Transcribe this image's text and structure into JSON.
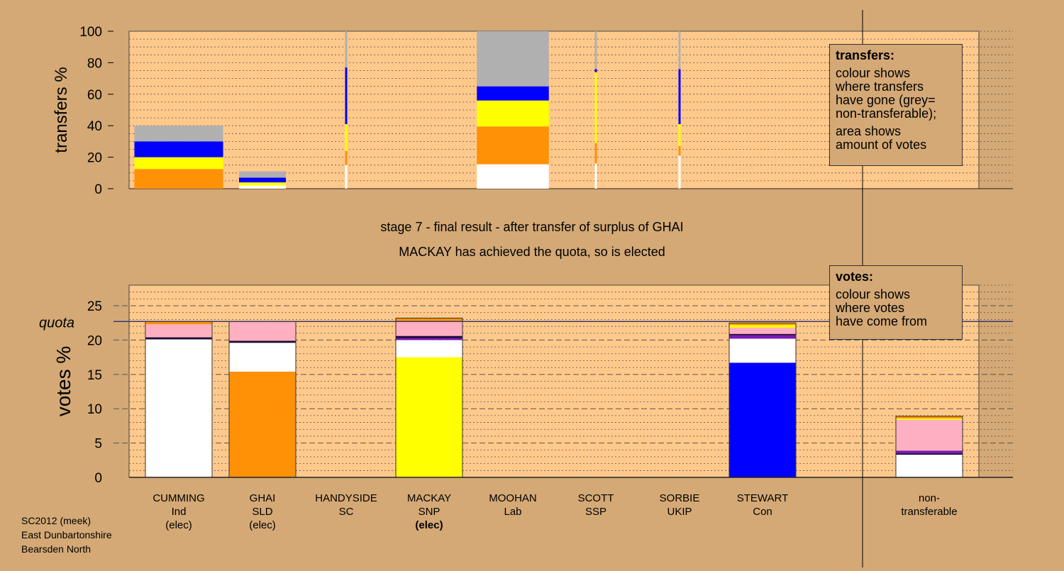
{
  "captions": {
    "stage": "stage 7 - final result - after transfer of surplus of GHAI",
    "status": "MACKAY has achieved the quota, so is elected"
  },
  "legend_transfers": {
    "title": "transfers:",
    "lines1": [
      "colour shows",
      "where transfers",
      "have gone (grey=",
      "non-transferable);"
    ],
    "lines2": [
      "area shows",
      "amount of votes"
    ]
  },
  "legend_votes": {
    "title": "votes:",
    "lines": [
      "colour shows",
      "where votes",
      "have come from"
    ]
  },
  "footer": {
    "lines": [
      "SC2012 (meek)",
      "East Dunbartonshire",
      "Bearsden North"
    ]
  },
  "colors": {
    "background": "#d4a976",
    "plot_background": "#ffc98c",
    "white": "#ffffff",
    "orange": "#ff9107",
    "yellow": "#ffff00",
    "blue": "#0000ff",
    "grey": "#b0b0b0",
    "purple": "#7a1ab5",
    "dark": "#1a0a3a",
    "pink": "#ffb0c0",
    "quota_line": "#3a3a6a"
  },
  "chart_data": [
    {
      "type": "bar",
      "name": "transfers",
      "ylabel": "transfers %",
      "ylim": [
        0,
        100
      ],
      "yticks": [
        0,
        20,
        40,
        60,
        80,
        100
      ],
      "grid": true,
      "note": "bar width proportional to the amount of votes transferred",
      "bars": [
        {
          "candidate": "CUMMING",
          "width_votes": 5.3,
          "segments": [
            {
              "color": "orange",
              "value": 12.5
            },
            {
              "color": "yellow",
              "value": 7.5
            },
            {
              "color": "blue",
              "value": 10
            },
            {
              "color": "grey",
              "value": 10
            }
          ]
        },
        {
          "candidate": "GHAI",
          "width_votes": 2.8,
          "segments": [
            {
              "color": "white",
              "value": 2
            },
            {
              "color": "yellow",
              "value": 2
            },
            {
              "color": "blue",
              "value": 3
            },
            {
              "color": "grey",
              "value": 4
            }
          ]
        },
        {
          "candidate": "HANDYSIDE",
          "width_votes": 0.1,
          "segments": [
            {
              "color": "white",
              "value": 15
            },
            {
              "color": "orange",
              "value": 9
            },
            {
              "color": "yellow",
              "value": 17
            },
            {
              "color": "blue",
              "value": 36
            },
            {
              "color": "grey",
              "value": 23
            }
          ]
        },
        {
          "candidate": "MOOHAN",
          "width_votes": 4.3,
          "segments": [
            {
              "color": "white",
              "value": 15.5
            },
            {
              "color": "orange",
              "value": 24
            },
            {
              "color": "yellow",
              "value": 16.5
            },
            {
              "color": "blue",
              "value": 9
            },
            {
              "color": "grey",
              "value": 35
            }
          ]
        },
        {
          "candidate": "SCOTT",
          "width_votes": 0.1,
          "segments": [
            {
              "color": "white",
              "value": 16
            },
            {
              "color": "orange",
              "value": 13
            },
            {
              "color": "yellow",
              "value": 45
            },
            {
              "color": "blue",
              "value": 2
            },
            {
              "color": "grey",
              "value": 24
            }
          ]
        },
        {
          "candidate": "SORBIE",
          "width_votes": 0.1,
          "segments": [
            {
              "color": "white",
              "value": 21
            },
            {
              "color": "orange",
              "value": 6
            },
            {
              "color": "yellow",
              "value": 14
            },
            {
              "color": "blue",
              "value": 35
            },
            {
              "color": "grey",
              "value": 24
            }
          ]
        }
      ]
    },
    {
      "type": "bar",
      "name": "votes",
      "ylabel": "votes %",
      "ylim": [
        0,
        28
      ],
      "yticks": [
        0,
        5,
        10,
        15,
        20,
        25
      ],
      "grid": true,
      "quota": 22.7,
      "quota_label": "quota",
      "bars": [
        {
          "candidate": "CUMMING",
          "party": "Ind",
          "status": "(elec)",
          "segments": [
            {
              "color": "white",
              "value": 20.1
            },
            {
              "color": "dark",
              "value": 0.3
            },
            {
              "color": "pink",
              "value": 1.9
            },
            {
              "color": "orange",
              "value": 0.4
            }
          ]
        },
        {
          "candidate": "GHAI",
          "party": "SLD",
          "status": "(elec)",
          "segments": [
            {
              "color": "orange",
              "value": 15.4
            },
            {
              "color": "white",
              "value": 4.2
            },
            {
              "color": "dark",
              "value": 0.3
            },
            {
              "color": "pink",
              "value": 2.8
            }
          ]
        },
        {
          "candidate": "HANDYSIDE",
          "party": "SC",
          "status": "",
          "segments": []
        },
        {
          "candidate": "MACKAY",
          "party": "SNP",
          "status": "(elec)",
          "segments": [
            {
              "color": "yellow",
              "value": 17.5
            },
            {
              "color": "white",
              "value": 2.5
            },
            {
              "color": "purple",
              "value": 0.3
            },
            {
              "color": "dark",
              "value": 0.3
            },
            {
              "color": "pink",
              "value": 2.1
            },
            {
              "color": "orange",
              "value": 0.5
            }
          ]
        },
        {
          "candidate": "MOOHAN",
          "party": "Lab",
          "status": "",
          "segments": []
        },
        {
          "candidate": "SCOTT",
          "party": "SSP",
          "status": "",
          "segments": []
        },
        {
          "candidate": "SORBIE",
          "party": "UKIP",
          "status": "",
          "segments": []
        },
        {
          "candidate": "STEWART",
          "party": "Con",
          "status": "",
          "segments": [
            {
              "color": "blue",
              "value": 16.7
            },
            {
              "color": "white",
              "value": 3.5
            },
            {
              "color": "purple",
              "value": 0.5
            },
            {
              "color": "dark",
              "value": 0.2
            },
            {
              "color": "pink",
              "value": 0.9
            },
            {
              "color": "yellow",
              "value": 0.4
            },
            {
              "color": "orange",
              "value": 0.3
            }
          ]
        },
        {
          "candidate": "non-",
          "party": "transferable",
          "status": "",
          "segments": [
            {
              "color": "white",
              "value": 3.3
            },
            {
              "color": "dark",
              "value": 0.2
            },
            {
              "color": "purple",
              "value": 0.4
            },
            {
              "color": "pink",
              "value": 4.5
            },
            {
              "color": "yellow",
              "value": 0.2
            },
            {
              "color": "orange",
              "value": 0.3
            }
          ]
        }
      ]
    }
  ]
}
